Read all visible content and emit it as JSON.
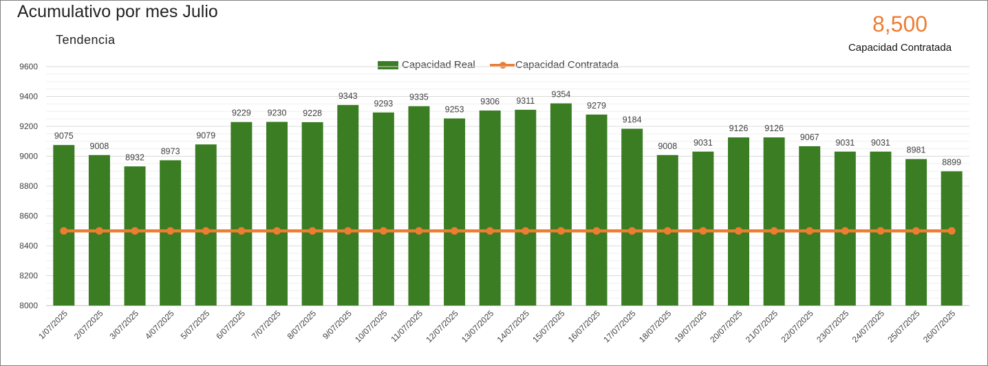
{
  "title": "Acumulativo por mes Julio",
  "subtitle": "Tendencia",
  "kpi": {
    "value": "8,500",
    "label": "Capacidad Contratada"
  },
  "colors": {
    "bar": "#3a7d22",
    "line": "#ed7d31",
    "grid": "#d9d9d9",
    "text": "#404040"
  },
  "chart_data": {
    "type": "bar",
    "categories": [
      "1/07/2025",
      "2/07/2025",
      "3/07/2025",
      "4/07/2025",
      "5/07/2025",
      "6/07/2025",
      "7/07/2025",
      "8/07/2025",
      "9/07/2025",
      "10/07/2025",
      "11/07/2025",
      "12/07/2025",
      "13/07/2025",
      "14/07/2025",
      "15/07/2025",
      "16/07/2025",
      "17/07/2025",
      "18/07/2025",
      "19/07/2025",
      "20/07/2025",
      "21/07/2025",
      "22/07/2025",
      "23/07/2025",
      "24/07/2025",
      "25/07/2025",
      "26/07/2025"
    ],
    "series": [
      {
        "name": "Capacidad Real",
        "type": "bar",
        "values": [
          9075,
          9008,
          8932,
          8973,
          9079,
          9229,
          9230,
          9228,
          9343,
          9293,
          9335,
          9253,
          9306,
          9311,
          9354,
          9279,
          9184,
          9008,
          9031,
          9126,
          9126,
          9067,
          9031,
          9031,
          8981,
          8899
        ]
      },
      {
        "name": "Capacidad Contratada",
        "type": "line",
        "values": [
          8500,
          8500,
          8500,
          8500,
          8500,
          8500,
          8500,
          8500,
          8500,
          8500,
          8500,
          8500,
          8500,
          8500,
          8500,
          8500,
          8500,
          8500,
          8500,
          8500,
          8500,
          8500,
          8500,
          8500,
          8500,
          8500
        ]
      }
    ],
    "ylim": [
      8000,
      9600
    ],
    "yticks": [
      "8000",
      "8200",
      "8400",
      "8600",
      "8800",
      "9000",
      "9200",
      "9400",
      "9600"
    ],
    "grid": true,
    "legend": "top-center"
  }
}
